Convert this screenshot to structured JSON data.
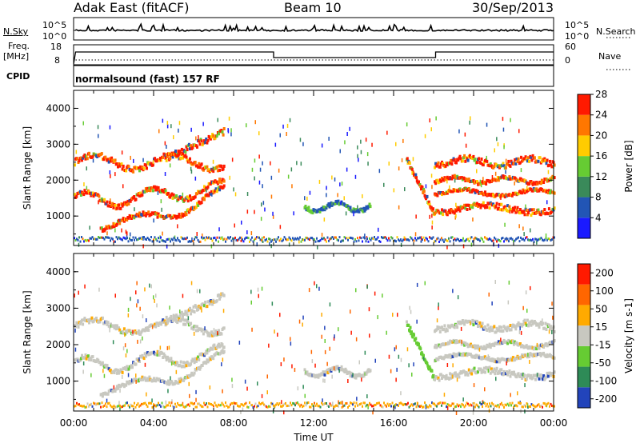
{
  "header": {
    "site": "Adak East (fitACF)",
    "beam": "Beam 10",
    "date": "30/Sep/2013"
  },
  "status_panels": {
    "nsky_label": "N.Sky",
    "nsky_ticks": [
      "10^5",
      "10^0"
    ],
    "nsearch_label": "N.Search",
    "nsearch_ticks": [
      "10^5",
      "10^0"
    ],
    "freq_label": "Freq.",
    "freq_unit": "[MHz]",
    "freq_ticks": [
      "18",
      "8"
    ],
    "nave_label": "Nave",
    "nave_ticks": [
      "60",
      "0"
    ],
    "cpid_label": "CPID",
    "cpid_text": "normalsound (fast) 157 RF"
  },
  "chart_data": [
    {
      "type": "heatmap",
      "title": "",
      "ylabel": "Slant Range [km]",
      "ylim": [
        180,
        4500
      ],
      "yticks": [
        1000,
        2000,
        3000,
        4000
      ],
      "colorbar_label": "Power [dB]",
      "colorbar_ticks": [
        "4",
        "8",
        "12",
        "16",
        "20",
        "24",
        "28"
      ],
      "colorbar_range": [
        0,
        30
      ],
      "colors": [
        "#1a1aff",
        "#2255b5",
        "#3a8a5a",
        "#66cc33",
        "#ffcc00",
        "#ff7700",
        "#ff1a00"
      ]
    },
    {
      "type": "heatmap",
      "title": "",
      "ylabel": "Slant Range [km]",
      "ylim": [
        180,
        4500
      ],
      "yticks": [
        1000,
        2000,
        3000,
        4000
      ],
      "xlabel": "Time UT",
      "xlim": [
        "00:00",
        "24:00"
      ],
      "xticks": [
        "00:00",
        "04:00",
        "08:00",
        "12:00",
        "16:00",
        "20:00",
        "00:00"
      ],
      "colorbar_label": "Velocity [m s-1]",
      "colorbar_ticks": [
        "200",
        "100",
        "50",
        "15",
        "-15",
        "-50",
        "-100",
        "-200"
      ],
      "colorbar_range": [
        -250,
        250
      ],
      "colors": [
        "#2244bb",
        "#2e8b57",
        "#66cc33",
        "#c8c8c0",
        "#ffaa00",
        "#ff6600",
        "#ff1a00"
      ]
    }
  ],
  "frequency_trace": {
    "segments": [
      {
        "start_hr": 0.1,
        "end_hr": 10.0,
        "level": "high"
      },
      {
        "start_hr": 10.0,
        "end_hr": 18.1,
        "level": "low"
      },
      {
        "start_hr": 18.1,
        "end_hr": 24.0,
        "level": "high"
      }
    ]
  }
}
